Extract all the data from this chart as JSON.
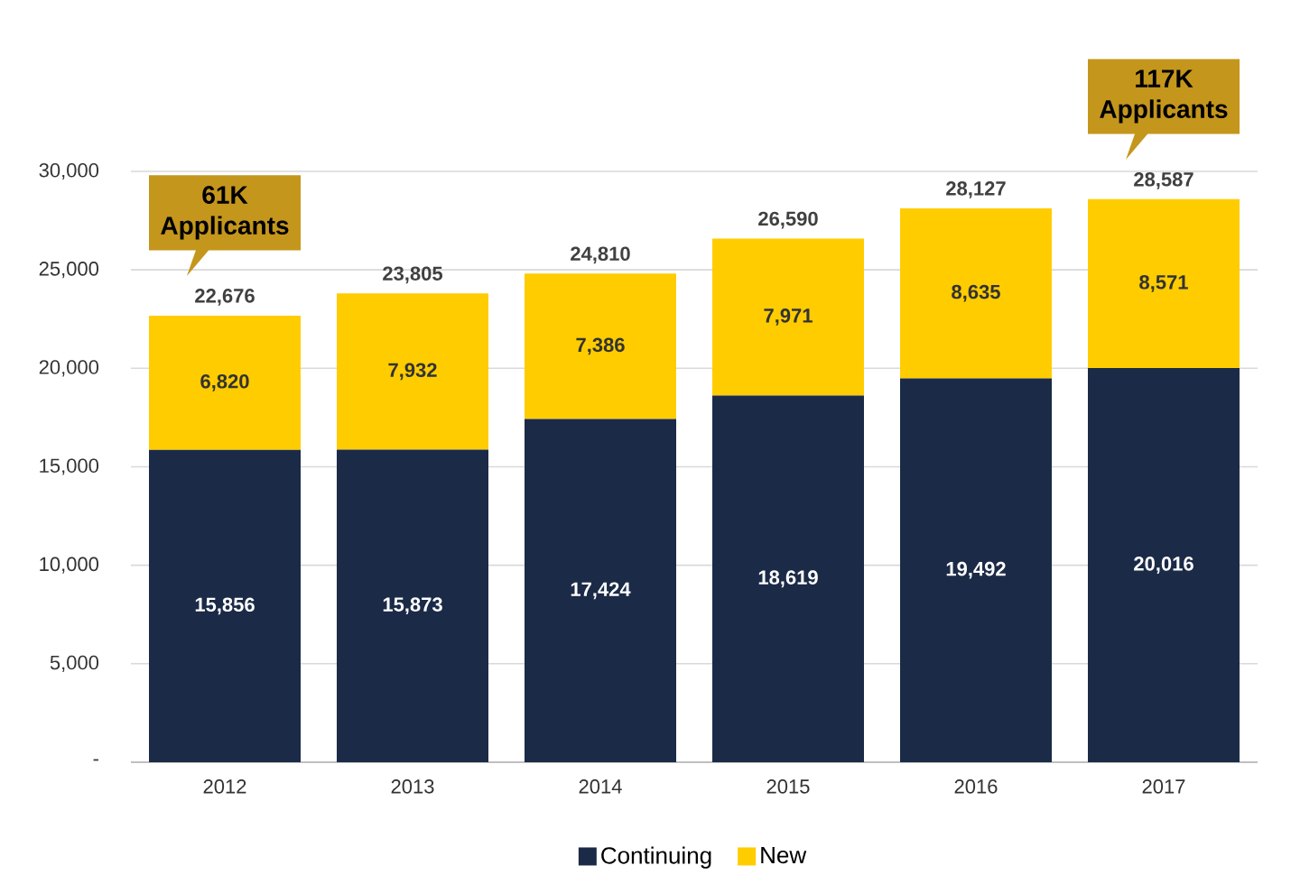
{
  "chart_data": {
    "type": "bar",
    "stacked": true,
    "categories": [
      "2012",
      "2013",
      "2014",
      "2015",
      "2016",
      "2017"
    ],
    "series": [
      {
        "name": "Continuing",
        "color": "#1b2a47",
        "values": [
          15856,
          15873,
          17424,
          18619,
          19492,
          20016
        ],
        "value_labels": [
          "15,856",
          "15,873",
          "17,424",
          "18,619",
          "19,492",
          "20,016"
        ]
      },
      {
        "name": "New",
        "color": "#ffcc00",
        "values": [
          6820,
          7932,
          7386,
          7971,
          8635,
          8571
        ],
        "value_labels": [
          "6,820",
          "7,932",
          "7,386",
          "7,971",
          "8,635",
          "8,571"
        ]
      }
    ],
    "totals": [
      "22,676",
      "23,805",
      "24,810",
      "26,590",
      "28,127",
      "28,587"
    ],
    "ylim": [
      0,
      30000
    ],
    "yticks": [
      {
        "value": 0,
        "label": "-"
      },
      {
        "value": 5000,
        "label": "5,000"
      },
      {
        "value": 10000,
        "label": "10,000"
      },
      {
        "value": 15000,
        "label": "15,000"
      },
      {
        "value": 20000,
        "label": "20,000"
      },
      {
        "value": 25000,
        "label": "25,000"
      },
      {
        "value": 30000,
        "label": "30,000"
      }
    ],
    "grid": "y",
    "legend": "bottom",
    "annotations": [
      "61K Applicants",
      "117K Applicants"
    ]
  }
}
